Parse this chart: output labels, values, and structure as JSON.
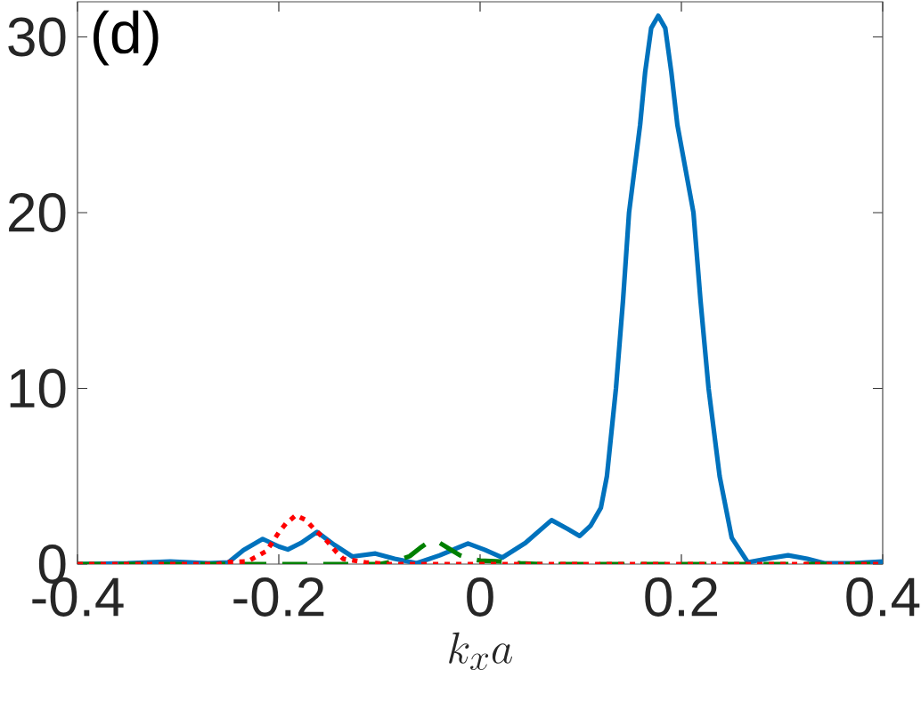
{
  "chart_data": {
    "type": "line",
    "xlabel": "k_x a",
    "annotations": [
      "(d)"
    ],
    "xlim": [
      -0.4,
      0.4
    ],
    "ylim": [
      0,
      32
    ],
    "xticks": [
      -0.4,
      -0.2,
      0,
      0.2,
      0.4
    ],
    "yticks": [
      0,
      10,
      20,
      30
    ],
    "series": [
      {
        "color": "#0072bd",
        "line_style": "solid",
        "x": [
          -0.4,
          -0.35,
          -0.308,
          -0.27,
          -0.25,
          -0.235,
          -0.216,
          -0.2,
          -0.191,
          -0.178,
          -0.162,
          -0.145,
          -0.127,
          -0.104,
          -0.085,
          -0.063,
          -0.04,
          -0.012,
          0.005,
          0.022,
          0.045,
          0.071,
          0.087,
          0.099,
          0.11,
          0.12,
          0.126,
          0.135,
          0.142,
          0.148,
          0.159,
          0.164,
          0.17,
          0.177,
          0.184,
          0.19,
          0.196,
          0.212,
          0.219,
          0.227,
          0.238,
          0.25,
          0.266,
          0.285,
          0.306,
          0.325,
          0.342,
          0.37,
          0.4
        ],
        "values": [
          0,
          0.05,
          0.15,
          0.05,
          0.1,
          0.8,
          1.43,
          1.0,
          0.83,
          1.2,
          1.83,
          1.1,
          0.43,
          0.6,
          0.3,
          0.05,
          0.5,
          1.17,
          0.8,
          0.37,
          1.2,
          2.5,
          2.0,
          1.6,
          2.2,
          3.2,
          5,
          10,
          15,
          20,
          25,
          28,
          30.5,
          31.2,
          30.5,
          28,
          25,
          20,
          15,
          10,
          5,
          1.5,
          0.1,
          0.3,
          0.5,
          0.3,
          0.05,
          0.05,
          0.15
        ]
      },
      {
        "color": "#008000",
        "line_style": "dashed",
        "x": [
          -0.4,
          -0.1,
          -0.085,
          -0.07,
          -0.06,
          -0.05,
          -0.04,
          -0.03,
          -0.02,
          -0.01,
          0.0,
          0.02,
          0.04,
          0.06,
          0.4
        ],
        "values": [
          0,
          0,
          0.15,
          0.45,
          0.9,
          1.3,
          1.2,
          0.85,
          0.5,
          0.3,
          0.2,
          0.15,
          0.05,
          0,
          0
        ]
      },
      {
        "color": "#ff0000",
        "line_style": "dotted",
        "x": [
          -0.4,
          -0.26,
          -0.253,
          -0.231,
          -0.212,
          -0.2,
          -0.193,
          -0.183,
          -0.173,
          -0.165,
          -0.152,
          -0.143,
          -0.136,
          -0.114,
          -0.09,
          0.4
        ],
        "values": [
          0,
          0,
          0.1,
          0.15,
          0.75,
          1.8,
          2.3,
          2.78,
          2.5,
          2.0,
          1.3,
          0.7,
          0.3,
          0.1,
          0,
          0
        ]
      }
    ]
  }
}
